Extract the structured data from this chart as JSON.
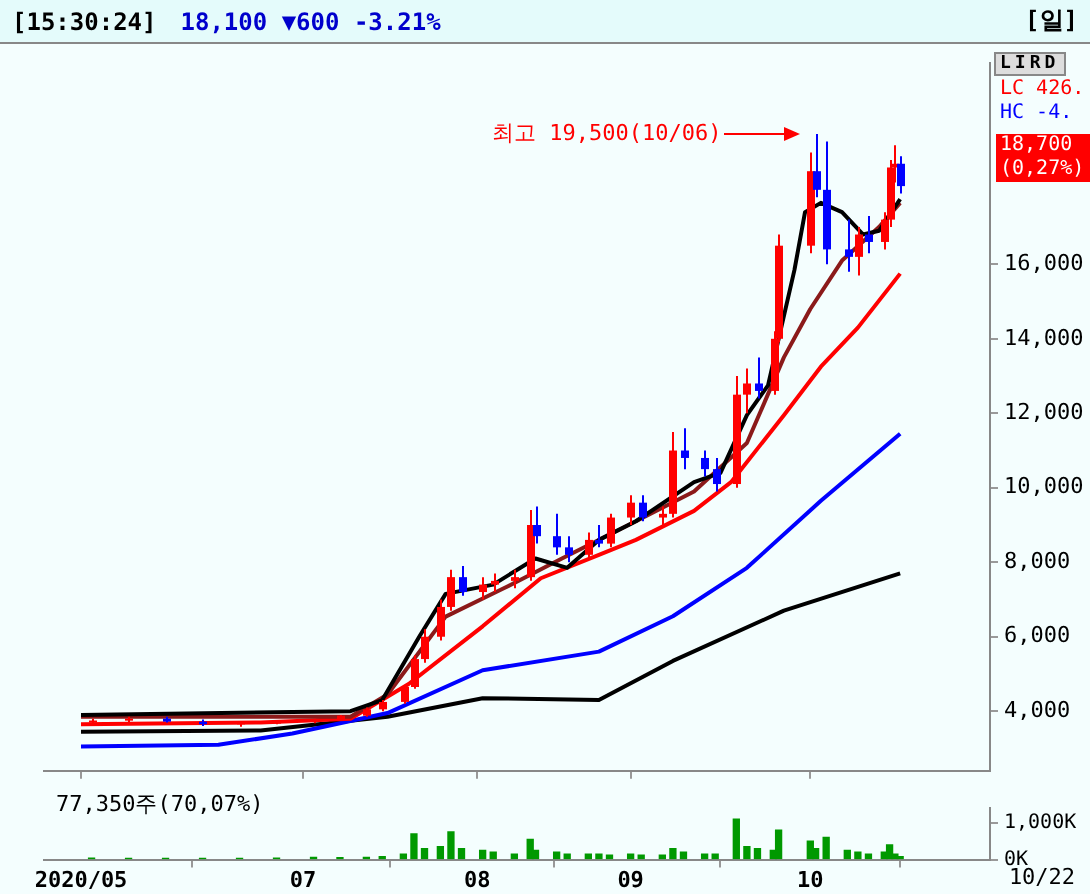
{
  "chart_data": [
    {
      "type": "candlestick",
      "title": "[15:30:24]",
      "subtitle": "18,100 ▼600 -3.21%",
      "annotations": [
        "[일]",
        "LIRD",
        "LC 426.",
        "HC -4.",
        "최고 19,500(10/06)",
        "18,700",
        "(0,27%)"
      ],
      "x": [
        "2020-05-22",
        "2020-05-29",
        "2020-06-05",
        "2020-06-12",
        "2020-06-19",
        "2020-06-26",
        "2020-07-03",
        "2020-07-08",
        "2020-07-13",
        "2020-07-16",
        "2020-07-20",
        "2020-07-22",
        "2020-07-24",
        "2020-07-27",
        "2020-07-29",
        "2020-07-31",
        "2020-08-04",
        "2020-08-06",
        "2020-08-10",
        "2020-08-13",
        "2020-08-14",
        "2020-08-18",
        "2020-08-20",
        "2020-08-24",
        "2020-08-26",
        "2020-08-28",
        "2020-09-01",
        "2020-09-03",
        "2020-09-07",
        "2020-09-09",
        "2020-09-11",
        "2020-09-15",
        "2020-09-17",
        "2020-09-21",
        "2020-09-23",
        "2020-09-25",
        "2020-09-28",
        "2020-09-29",
        "2020-10-05",
        "2020-10-06",
        "2020-10-08",
        "2020-10-12",
        "2020-10-14",
        "2020-10-16",
        "2020-10-19",
        "2020-10-20",
        "2020-10-21",
        "2020-10-22"
      ],
      "ohlc": [
        [
          3700,
          3800,
          3650,
          3750
        ],
        [
          3750,
          3850,
          3700,
          3800
        ],
        [
          3800,
          3850,
          3700,
          3720
        ],
        [
          3720,
          3780,
          3600,
          3650
        ],
        [
          3650,
          3720,
          3580,
          3700
        ],
        [
          3700,
          3760,
          3650,
          3720
        ],
        [
          3720,
          3800,
          3680,
          3780
        ],
        [
          3780,
          3900,
          3750,
          3880
        ],
        [
          3880,
          4100,
          3850,
          4050
        ],
        [
          4050,
          4300,
          4000,
          4250
        ],
        [
          4250,
          4700,
          4200,
          4650
        ],
        [
          4650,
          5500,
          4600,
          5400
        ],
        [
          5400,
          6200,
          5300,
          6000
        ],
        [
          6000,
          7000,
          5900,
          6800
        ],
        [
          6800,
          7800,
          6700,
          7600
        ],
        [
          7600,
          7900,
          7100,
          7200
        ],
        [
          7200,
          7600,
          7000,
          7400
        ],
        [
          7400,
          7700,
          7200,
          7500
        ],
        [
          7500,
          7800,
          7300,
          7600
        ],
        [
          7600,
          9400,
          7500,
          9000
        ],
        [
          9000,
          9500,
          8500,
          8700
        ],
        [
          8700,
          9300,
          8200,
          8400
        ],
        [
          8400,
          8700,
          8000,
          8200
        ],
        [
          8200,
          8800,
          8100,
          8600
        ],
        [
          8600,
          9000,
          8400,
          8500
        ],
        [
          8500,
          9300,
          8400,
          9200
        ],
        [
          9200,
          9800,
          9000,
          9600
        ],
        [
          9600,
          9800,
          9100,
          9200
        ],
        [
          9200,
          9500,
          9000,
          9300
        ],
        [
          9300,
          11500,
          9200,
          11000
        ],
        [
          11000,
          11600,
          10500,
          10800
        ],
        [
          10800,
          11000,
          10300,
          10500
        ],
        [
          10500,
          10800,
          9900,
          10100
        ],
        [
          10100,
          13000,
          10000,
          12500
        ],
        [
          12500,
          13200,
          12000,
          12800
        ],
        [
          12800,
          13500,
          12400,
          12600
        ],
        [
          12600,
          14200,
          12500,
          14000
        ],
        [
          14000,
          16800,
          13900,
          16500
        ],
        [
          16500,
          19000,
          16300,
          18500
        ],
        [
          18500,
          19500,
          17800,
          18000
        ],
        [
          18000,
          19300,
          16000,
          16400
        ],
        [
          16400,
          17200,
          15800,
          16200
        ],
        [
          16200,
          17000,
          15700,
          16800
        ],
        [
          16800,
          17300,
          16300,
          16600
        ],
        [
          16600,
          17400,
          16400,
          17200
        ],
        [
          17200,
          18800,
          17000,
          18600
        ],
        [
          18600,
          19200,
          18200,
          18700
        ],
        [
          18700,
          18900,
          17900,
          18100
        ]
      ],
      "colors": [
        "#ff0000",
        "#ff0000",
        "#0000ff",
        "#0000ff",
        "#ff0000",
        "#ff0000",
        "#ff0000",
        "#ff0000",
        "#ff0000",
        "#ff0000",
        "#ff0000",
        "#ff0000",
        "#ff0000",
        "#ff0000",
        "#ff0000",
        "#0000ff",
        "#ff0000",
        "#ff0000",
        "#ff0000",
        "#ff0000",
        "#0000ff",
        "#0000ff",
        "#0000ff",
        "#ff0000",
        "#0000ff",
        "#ff0000",
        "#ff0000",
        "#0000ff",
        "#ff0000",
        "#ff0000",
        "#0000ff",
        "#0000ff",
        "#0000ff",
        "#ff0000",
        "#ff0000",
        "#0000ff",
        "#ff0000",
        "#ff0000",
        "#ff0000",
        "#0000ff",
        "#0000ff",
        "#0000ff",
        "#ff0000",
        "#0000ff",
        "#ff0000",
        "#ff0000",
        "#ff0000",
        "#0000ff"
      ],
      "series": [
        {
          "type": "line",
          "color": "#000000",
          "x": [
            "2020-05-20",
            "2020-07-10",
            "2020-07-16",
            "2020-07-23",
            "2020-07-28",
            "2020-08-06",
            "2020-08-14",
            "2020-08-20",
            "2020-08-26",
            "2020-09-02",
            "2020-09-13",
            "2020-09-18",
            "2020-09-23",
            "2020-09-27",
            "2020-10-02",
            "2020-10-04",
            "2020-10-07",
            "2020-10-11",
            "2020-10-15",
            "2020-10-18",
            "2020-10-22"
          ],
          "values": [
            3900,
            4000,
            4300,
            6000,
            7150,
            7400,
            8100,
            7850,
            8600,
            9100,
            10150,
            10400,
            11950,
            12750,
            15850,
            17400,
            17650,
            17400,
            16800,
            16900,
            17750
          ]
        },
        {
          "type": "line",
          "color": "#8b1a1a",
          "x": [
            "2020-05-20",
            "2020-07-10",
            "2020-07-17",
            "2020-07-28",
            "2020-08-08",
            "2020-08-19",
            "2020-09-02",
            "2020-09-13",
            "2020-09-23",
            "2020-09-30",
            "2020-10-05",
            "2020-10-11",
            "2020-10-18",
            "2020-10-22"
          ],
          "values": [
            3850,
            3850,
            4450,
            6540,
            7300,
            8100,
            9100,
            9900,
            11200,
            13500,
            14800,
            16100,
            17000,
            17650
          ]
        },
        {
          "type": "line",
          "color": "#ff0000",
          "x": [
            "2020-05-20",
            "2020-06-23",
            "2020-07-10",
            "2020-07-21",
            "2020-08-04",
            "2020-08-15",
            "2020-08-26",
            "2020-09-02",
            "2020-09-13",
            "2020-09-20",
            "2020-09-30",
            "2020-10-07",
            "2020-10-14",
            "2020-10-22"
          ],
          "values": [
            3650,
            3700,
            3800,
            4730,
            6280,
            7570,
            8200,
            8600,
            9380,
            10150,
            11950,
            13250,
            14300,
            15750
          ]
        },
        {
          "type": "line",
          "color": "#0000ff",
          "x": [
            "2020-05-20",
            "2020-06-15",
            "2020-06-29",
            "2020-07-17",
            "2020-08-04",
            "2020-08-26",
            "2020-09-09",
            "2020-09-23",
            "2020-10-07",
            "2020-10-22"
          ],
          "values": [
            3050,
            3100,
            3400,
            3950,
            5100,
            5600,
            6550,
            7850,
            9650,
            11450
          ]
        },
        {
          "type": "line",
          "color": "#000000",
          "x": [
            "2020-05-20",
            "2020-06-23",
            "2020-07-17",
            "2020-08-04",
            "2020-08-26",
            "2020-09-09",
            "2020-09-30",
            "2020-10-22"
          ],
          "values": [
            3450,
            3480,
            3850,
            4350,
            4300,
            5350,
            6700,
            7700
          ]
        }
      ],
      "xlim": [
        "2020-05-13",
        "2020-11-08"
      ],
      "ylim": [
        2400,
        21400
      ],
      "yticks": [
        {
          "value": 4000,
          "label": "4,000"
        },
        {
          "value": 6000,
          "label": "6,000"
        },
        {
          "value": 8000,
          "label": "8,000"
        },
        {
          "value": 10000,
          "label": "10,000"
        },
        {
          "value": 12000,
          "label": "12,000"
        },
        {
          "value": 14000,
          "label": "14,000"
        },
        {
          "value": 16000,
          "label": "16,000"
        }
      ],
      "xticks": [
        {
          "value": "2020-05-20",
          "label": null
        },
        {
          "value": "2020-07-01",
          "label": null
        },
        {
          "value": "2020-08-03",
          "label": null
        },
        {
          "value": "2020-09-01",
          "label": null
        },
        {
          "value": "2020-10-05",
          "label": null
        }
      ],
      "grid": false,
      "legend": false,
      "tick_labels": "y"
    },
    {
      "type": "bar",
      "annotations": [
        "77,350주(70,07%)",
        "10/22"
      ],
      "color": "#009900",
      "x": [
        "2020-05-22",
        "2020-05-29",
        "2020-06-05",
        "2020-06-12",
        "2020-06-19",
        "2020-06-26",
        "2020-07-03",
        "2020-07-08",
        "2020-07-13",
        "2020-07-16",
        "2020-07-20",
        "2020-07-22",
        "2020-07-24",
        "2020-07-27",
        "2020-07-29",
        "2020-07-31",
        "2020-08-04",
        "2020-08-06",
        "2020-08-10",
        "2020-08-13",
        "2020-08-14",
        "2020-08-18",
        "2020-08-20",
        "2020-08-24",
        "2020-08-26",
        "2020-08-28",
        "2020-09-01",
        "2020-09-03",
        "2020-09-07",
        "2020-09-09",
        "2020-09-11",
        "2020-09-15",
        "2020-09-17",
        "2020-09-21",
        "2020-09-23",
        "2020-09-25",
        "2020-09-28",
        "2020-09-29",
        "2020-10-05",
        "2020-10-06",
        "2020-10-08",
        "2020-10-12",
        "2020-10-14",
        "2020-10-16",
        "2020-10-19",
        "2020-10-20",
        "2020-10-21",
        "2020-10-22"
      ],
      "values": [
        40,
        30,
        30,
        30,
        30,
        40,
        60,
        50,
        60,
        80,
        150,
        700,
        300,
        350,
        750,
        300,
        250,
        200,
        150,
        550,
        250,
        200,
        150,
        150,
        150,
        120,
        150,
        120,
        120,
        300,
        200,
        150,
        150,
        1100,
        350,
        300,
        250,
        800,
        500,
        300,
        600,
        250,
        200,
        150,
        200,
        400,
        150,
        80
      ],
      "xlim": [
        "2020-05-13",
        "2020-11-08"
      ],
      "ylim": [
        0,
        1400
      ],
      "yticks": [
        {
          "value": 0,
          "label": "0K"
        },
        {
          "value": 1000,
          "label": "1,000K"
        }
      ],
      "xticks": [
        {
          "value": "2020-05-20",
          "label": "2020/05"
        },
        {
          "value": "2020-07-01",
          "label": "07"
        },
        {
          "value": "2020-08-03",
          "label": "08"
        },
        {
          "value": "2020-09-01",
          "label": "09"
        },
        {
          "value": "2020-10-05",
          "label": "10"
        }
      ],
      "grid": false,
      "legend": false
    }
  ]
}
